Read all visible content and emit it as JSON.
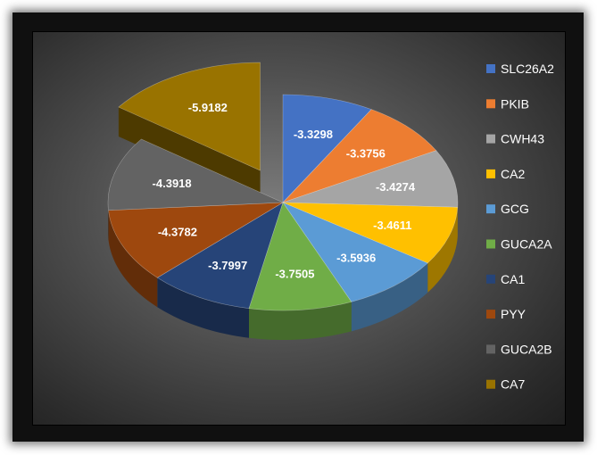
{
  "chart_data": {
    "type": "pie",
    "style": "3d-exploded",
    "categories": [
      "SLC26A2",
      "PKIB",
      "CWH43",
      "CA2",
      "GCG",
      "GUCA2A",
      "CA1",
      "PYY",
      "GUCA2B",
      "CA7"
    ],
    "values": [
      -3.3298,
      -3.3756,
      -3.4274,
      -3.4611,
      -3.5936,
      -3.7505,
      -3.7997,
      -4.3782,
      -4.3918,
      -5.9182
    ],
    "data_labels": [
      "-3.3298",
      "-3.3756",
      "-3.4274",
      "-3.4611",
      "-3.5936",
      "-3.7505",
      "-3.7997",
      "-4.3782",
      "-4.3918",
      "-5.9182"
    ],
    "exploded": [
      "CA7"
    ],
    "legend_position": "right",
    "colors": [
      "#4472C4",
      "#ED7D31",
      "#A5A5A5",
      "#FFC000",
      "#5B9BD5",
      "#70AD47",
      "#264478",
      "#9E480E",
      "#636363",
      "#997300"
    ]
  }
}
